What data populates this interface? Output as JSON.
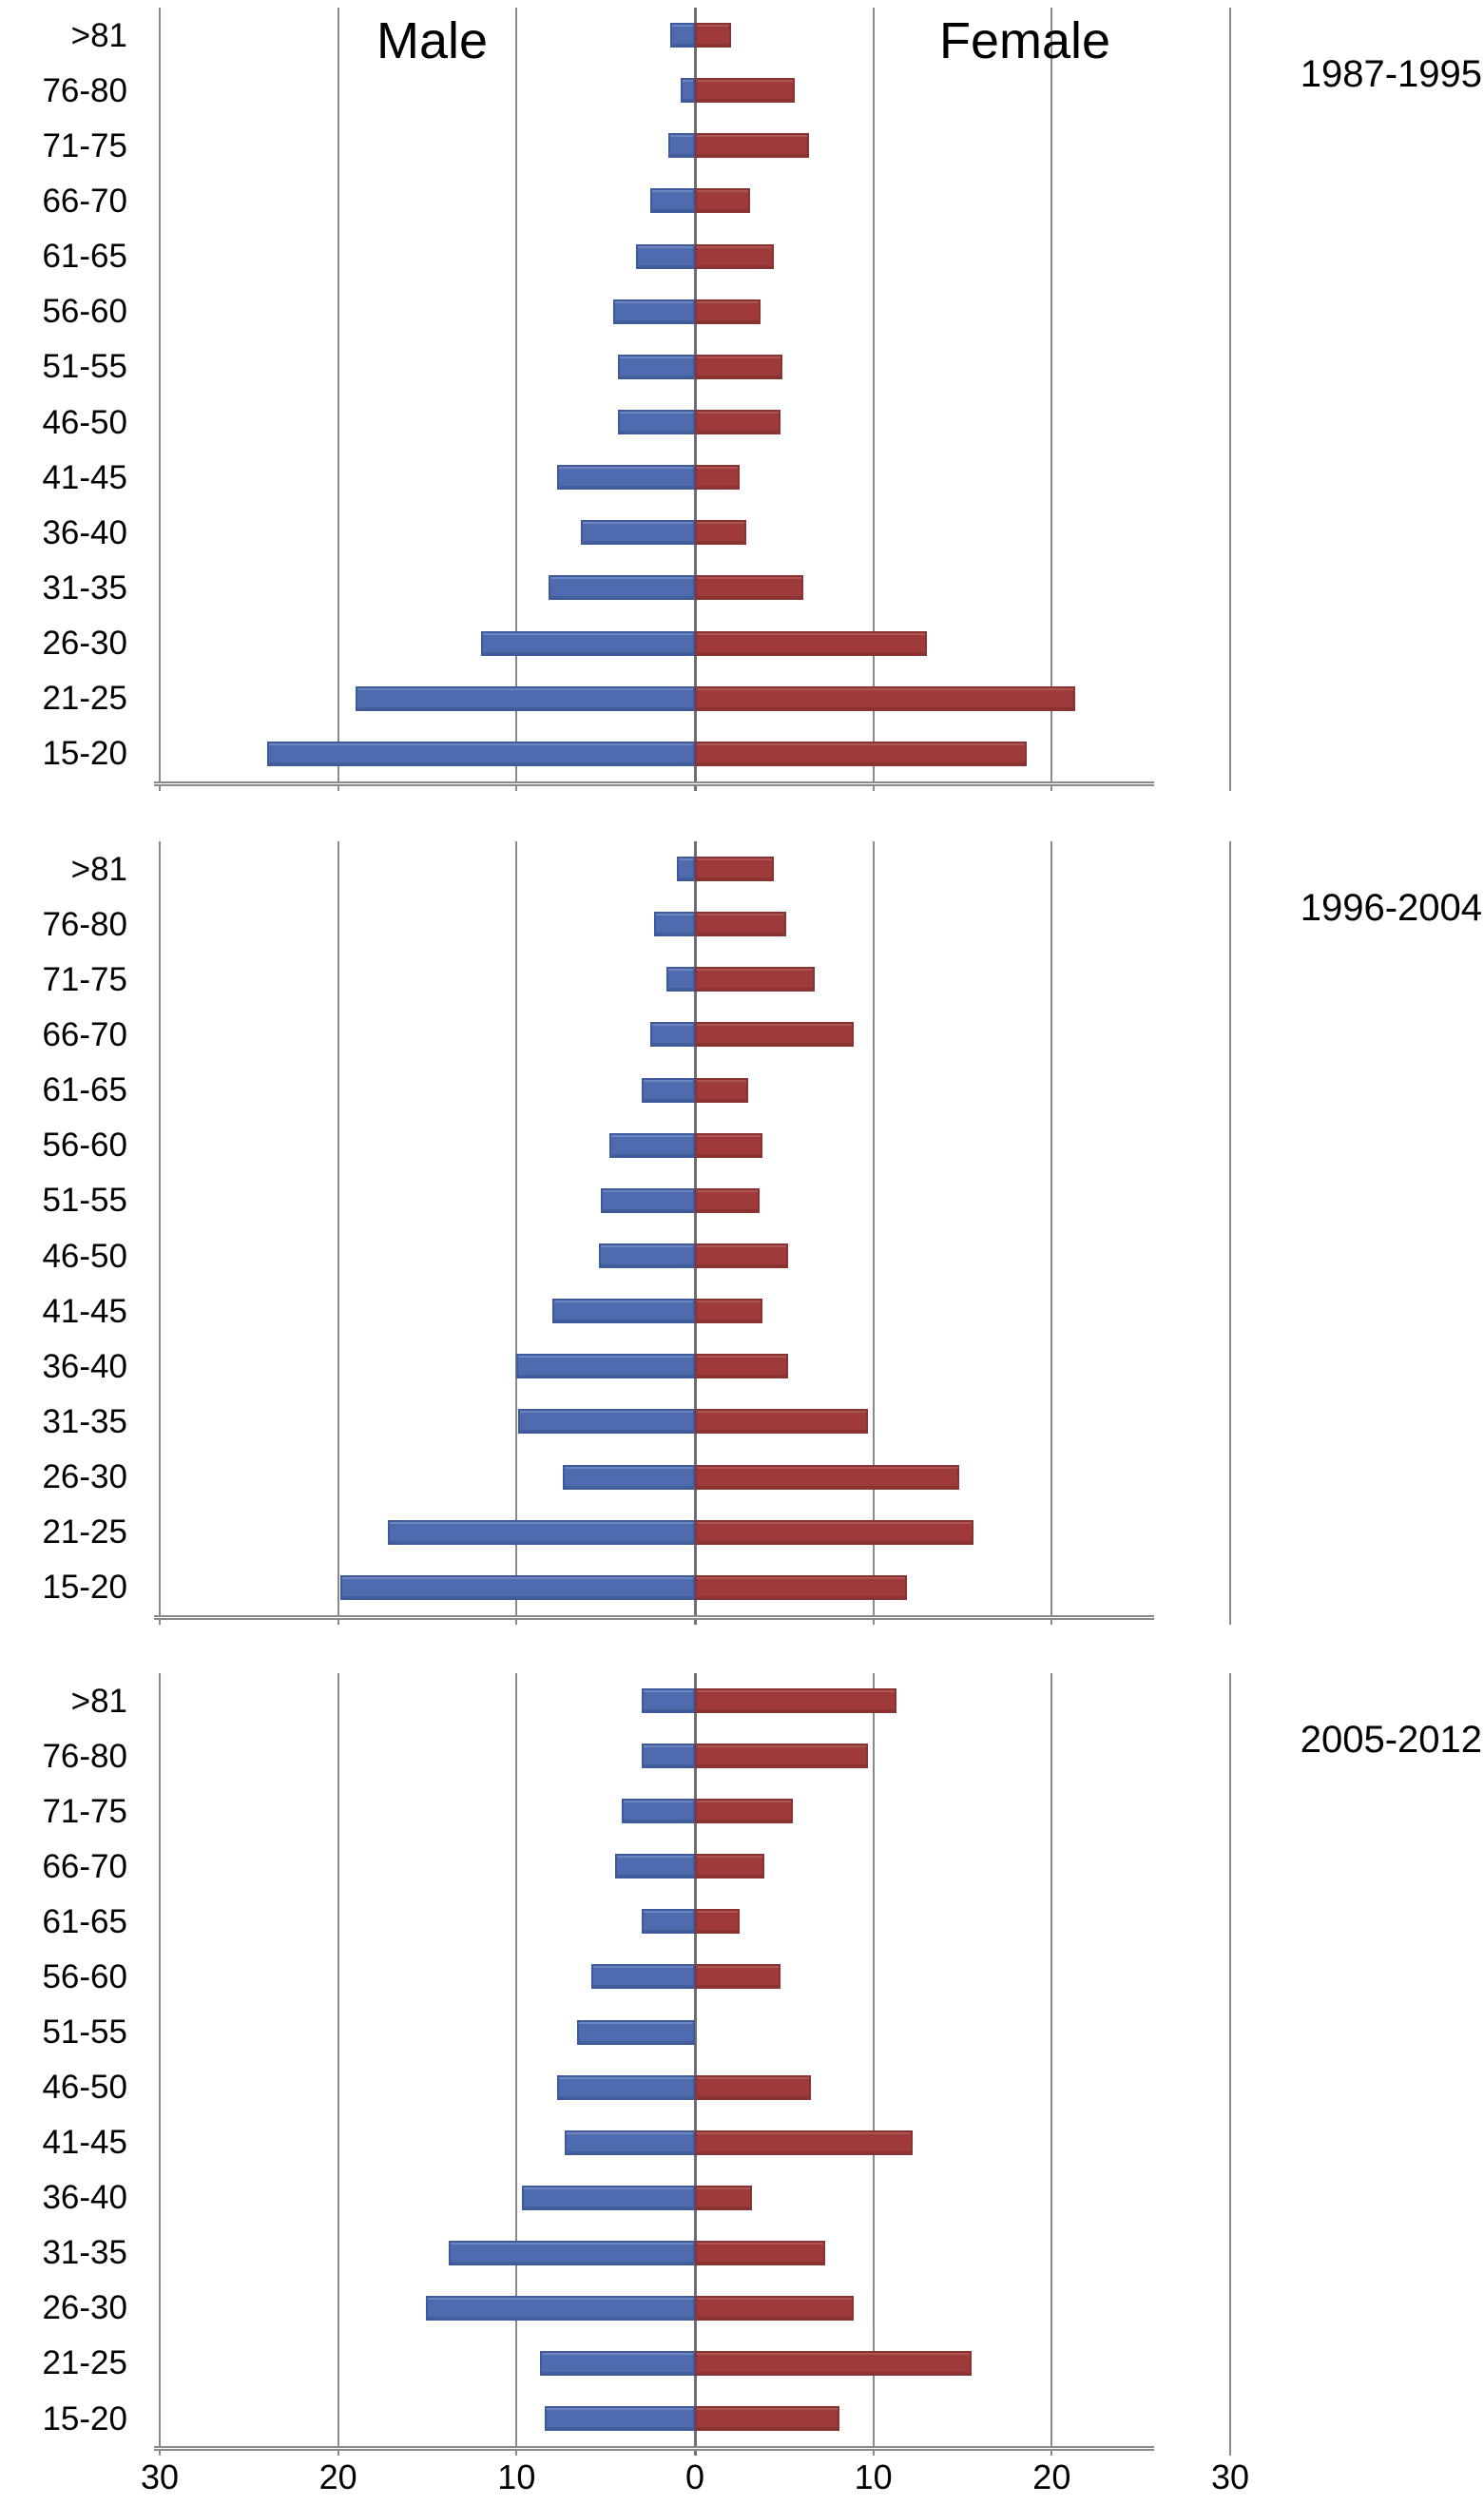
{
  "chart_data": {
    "type": "bar",
    "subtype": "population-pyramid",
    "orientation": "horizontal",
    "male_label": "Male",
    "female_label": "Female",
    "colors": {
      "male": "#4f6bb0",
      "female": "#9e3b3a",
      "gridline": "#8a8a8a"
    },
    "age_groups": [
      ">81",
      "76-80",
      "71-75",
      "66-70",
      "61-65",
      "56-60",
      "51-55",
      "46-50",
      "41-45",
      "36-40",
      "31-35",
      "26-30",
      "21-25",
      "15-20"
    ],
    "x_axis": {
      "tick_labels": [
        "30",
        "20",
        "10",
        "0",
        "10",
        "20",
        "30"
      ],
      "tick_values": [
        -30,
        -20,
        -10,
        0,
        10,
        20,
        30
      ],
      "max_abs": 30,
      "grid": true
    },
    "legend_position": "top-inside",
    "panels": [
      {
        "period": "1987-1995",
        "series": [
          {
            "name": "Male",
            "values": [
              1.4,
              0.8,
              1.5,
              2.5,
              3.3,
              4.6,
              4.3,
              4.3,
              7.7,
              6.4,
              8.2,
              12.0,
              19.0,
              24.0
            ]
          },
          {
            "name": "Female",
            "values": [
              2.0,
              5.6,
              6.4,
              3.1,
              4.4,
              3.7,
              4.9,
              4.8,
              2.5,
              2.9,
              6.1,
              13.0,
              21.3,
              18.6
            ]
          }
        ]
      },
      {
        "period": "1996-2004",
        "series": [
          {
            "name": "Male",
            "values": [
              1.0,
              2.3,
              1.6,
              2.5,
              3.0,
              4.8,
              5.3,
              5.4,
              8.0,
              10.0,
              9.9,
              7.4,
              17.2,
              19.9
            ]
          },
          {
            "name": "Female",
            "values": [
              4.4,
              5.1,
              6.7,
              8.9,
              3.0,
              3.8,
              3.6,
              5.2,
              3.8,
              5.2,
              9.7,
              14.8,
              15.6,
              11.9
            ]
          }
        ]
      },
      {
        "period": "2005-2012",
        "series": [
          {
            "name": "Male",
            "values": [
              3.0,
              3.0,
              4.1,
              4.5,
              3.0,
              5.8,
              6.6,
              7.7,
              7.3,
              9.7,
              13.8,
              15.1,
              8.7,
              8.4
            ]
          },
          {
            "name": "Female",
            "values": [
              11.3,
              9.7,
              5.5,
              3.9,
              2.5,
              4.8,
              0.0,
              6.5,
              12.2,
              3.2,
              7.3,
              8.9,
              15.5,
              8.1
            ]
          }
        ]
      }
    ]
  }
}
